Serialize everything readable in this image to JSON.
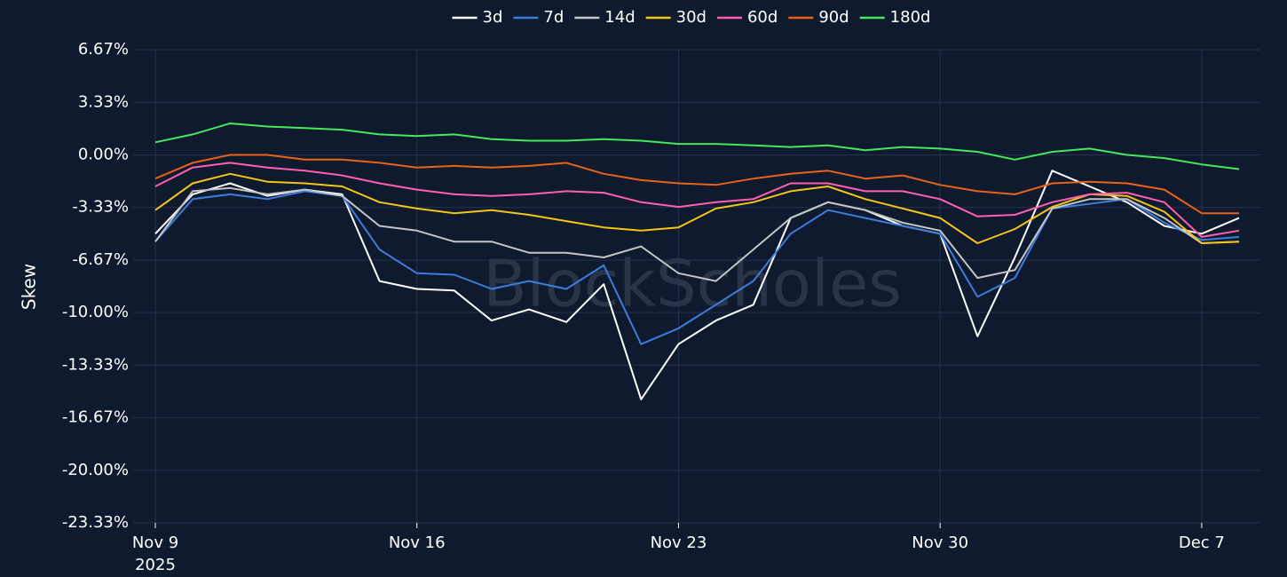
{
  "chart_data": {
    "type": "line",
    "y_label": "Skew",
    "watermark": "BlockScholes",
    "x": [
      "2025-11-09",
      "2025-11-10",
      "2025-11-11",
      "2025-11-12",
      "2025-11-13",
      "2025-11-14",
      "2025-11-15",
      "2025-11-16",
      "2025-11-17",
      "2025-11-18",
      "2025-11-19",
      "2025-11-20",
      "2025-11-21",
      "2025-11-22",
      "2025-11-23",
      "2025-11-24",
      "2025-11-25",
      "2025-11-26",
      "2025-11-27",
      "2025-11-28",
      "2025-11-29",
      "2025-11-30",
      "2025-12-01",
      "2025-12-02",
      "2025-12-03",
      "2025-12-04",
      "2025-12-05",
      "2025-12-06",
      "2025-12-07",
      "2025-12-08"
    ],
    "series": [
      {
        "name": "3d",
        "color": "#ffffff",
        "values": [
          -5.0,
          -2.5,
          -1.8,
          -2.6,
          -2.2,
          -2.5,
          -8.0,
          -8.5,
          -8.6,
          -10.5,
          -9.8,
          -10.6,
          -8.2,
          -15.5,
          -12.0,
          -10.5,
          -9.5,
          -4.0,
          -3.0,
          -3.5,
          -4.5,
          -5.0,
          -11.5,
          -6.5,
          -1.0,
          -2.0,
          -3.0,
          -4.5,
          -5.0,
          -4.0
        ]
      },
      {
        "name": "7d",
        "color": "#3b7ddd",
        "values": [
          -5.5,
          -2.8,
          -2.5,
          -2.8,
          -2.3,
          -2.6,
          -6.0,
          -7.5,
          -7.6,
          -8.5,
          -8.0,
          -8.5,
          -7.0,
          -12.0,
          -11.0,
          -9.5,
          -8.0,
          -5.0,
          -3.5,
          -4.0,
          -4.5,
          -5.0,
          -9.0,
          -7.8,
          -3.4,
          -3.1,
          -2.8,
          -4.3,
          -5.4,
          -5.2
        ]
      },
      {
        "name": "14d",
        "color": "#c4c4c4",
        "values": [
          -5.5,
          -2.3,
          -2.1,
          -2.5,
          -2.2,
          -2.6,
          -4.5,
          -4.8,
          -5.5,
          -5.5,
          -6.2,
          -6.2,
          -6.5,
          -5.8,
          -7.5,
          -8.0,
          -6.0,
          -4.0,
          -3.0,
          -3.5,
          -4.3,
          -4.8,
          -7.8,
          -7.3,
          -3.4,
          -2.8,
          -2.8,
          -4.0,
          -5.6,
          -5.5
        ]
      },
      {
        "name": "30d",
        "color": "#f5c518",
        "values": [
          -3.5,
          -1.8,
          -1.2,
          -1.7,
          -1.8,
          -2.0,
          -3.0,
          -3.4,
          -3.7,
          -3.5,
          -3.8,
          -4.2,
          -4.6,
          -4.8,
          -4.6,
          -3.4,
          -3.0,
          -2.3,
          -2.0,
          -2.8,
          -3.4,
          -4.0,
          -5.6,
          -4.7,
          -3.3,
          -2.5,
          -2.6,
          -3.6,
          -5.6,
          -5.5
        ]
      },
      {
        "name": "60d",
        "color": "#ff5fb0",
        "values": [
          -2.0,
          -0.8,
          -0.5,
          -0.8,
          -1.0,
          -1.3,
          -1.8,
          -2.2,
          -2.5,
          -2.6,
          -2.5,
          -2.3,
          -2.4,
          -3.0,
          -3.3,
          -3.0,
          -2.8,
          -1.8,
          -1.8,
          -2.3,
          -2.3,
          -2.8,
          -3.9,
          -3.8,
          -3.0,
          -2.5,
          -2.4,
          -3.0,
          -5.2,
          -4.8
        ]
      },
      {
        "name": "90d",
        "color": "#e8621a",
        "values": [
          -1.5,
          -0.5,
          0,
          0,
          -0.3,
          -0.3,
          -0.5,
          -0.8,
          -0.7,
          -0.8,
          -0.7,
          -0.5,
          -1.2,
          -1.6,
          -1.8,
          -1.9,
          -1.5,
          -1.2,
          -1.0,
          -1.5,
          -1.3,
          -1.9,
          -2.3,
          -2.5,
          -1.8,
          -1.7,
          -1.8,
          -2.2,
          -3.7,
          -3.7
        ]
      },
      {
        "name": "180d",
        "color": "#44e85a",
        "values": [
          0.8,
          1.3,
          2.0,
          1.8,
          1.7,
          1.6,
          1.3,
          1.2,
          1.3,
          1.0,
          0.9,
          0.9,
          1.0,
          0.9,
          0.7,
          0.7,
          0.6,
          0.5,
          0.6,
          0.3,
          0.5,
          0.4,
          0.2,
          -0.3,
          0.2,
          0.4,
          0.0,
          -0.2,
          -0.6,
          -0.9
        ]
      }
    ],
    "xlim": [
      "2025-11-09",
      "2025-12-08"
    ],
    "xticks": [
      {
        "value": "2025-11-09",
        "label": "Nov 9"
      },
      {
        "value": "2025-11-16",
        "label": "Nov 16"
      },
      {
        "value": "2025-11-23",
        "label": "Nov 23"
      },
      {
        "value": "2025-11-30",
        "label": "Nov 30"
      },
      {
        "value": "2025-12-07",
        "label": "Dec 7"
      }
    ],
    "x_year_label": "2025",
    "ylim": [
      -23.33,
      6.67
    ],
    "yticks": [
      {
        "value": 6.67,
        "label": "6.67%"
      },
      {
        "value": 3.33,
        "label": "3.33%"
      },
      {
        "value": 0,
        "label": "0.00%"
      },
      {
        "value": -3.33,
        "label": "-3.33%"
      },
      {
        "value": -6.67,
        "label": "-6.67%"
      },
      {
        "value": -10,
        "label": "-10.00%"
      },
      {
        "value": -13.33,
        "label": "-13.33%"
      },
      {
        "value": -16.67,
        "label": "-16.67%"
      },
      {
        "value": -20,
        "label": "-20.00%"
      },
      {
        "value": -23.33,
        "label": "-23.33%"
      }
    ],
    "grid": true,
    "legend": "top"
  }
}
